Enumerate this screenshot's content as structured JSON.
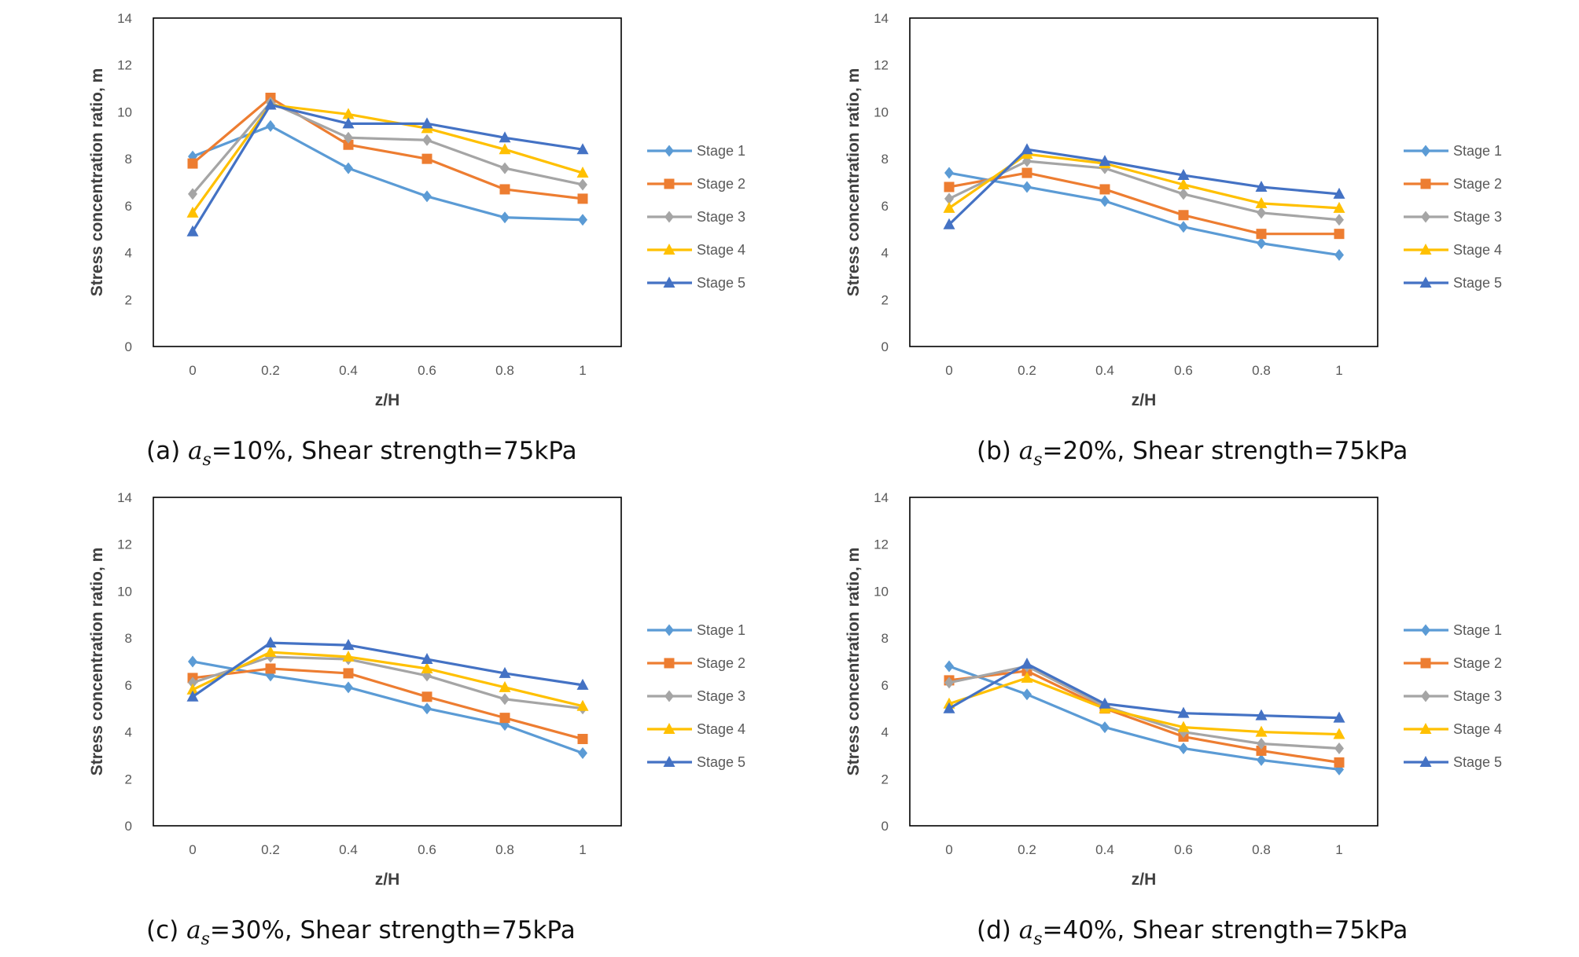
{
  "chart_data": [
    {
      "type": "line",
      "caption": {
        "prefix": "(a) ",
        "symbol": "a",
        "subscript": "s",
        "suffix": "=10%, Shear strength=75kPa"
      },
      "xlabel": "z/H",
      "ylabel": "Stress concentration ratio, m",
      "x": [
        0,
        0.2,
        0.4,
        0.6,
        0.8,
        1
      ],
      "xtick_labels": [
        "0",
        "0.2",
        "0.4",
        "0.6",
        "0.8",
        "1"
      ],
      "ylim": [
        0,
        14
      ],
      "ytick_labels": [
        "0",
        "2",
        "4",
        "6",
        "8",
        "10",
        "12",
        "14"
      ],
      "series": [
        {
          "name": "Stage 1",
          "values": [
            8.1,
            9.4,
            7.6,
            6.4,
            5.5,
            5.4
          ]
        },
        {
          "name": "Stage 2",
          "values": [
            7.8,
            10.6,
            8.6,
            8.0,
            6.7,
            6.3
          ]
        },
        {
          "name": "Stage 3",
          "values": [
            6.5,
            10.4,
            8.9,
            8.8,
            7.6,
            6.9
          ]
        },
        {
          "name": "Stage 4",
          "values": [
            5.7,
            10.3,
            9.9,
            9.3,
            8.4,
            7.4
          ]
        },
        {
          "name": "Stage 5",
          "values": [
            4.9,
            10.3,
            9.5,
            9.5,
            8.9,
            8.4
          ]
        }
      ]
    },
    {
      "type": "line",
      "caption": {
        "prefix": "(b) ",
        "symbol": "a",
        "subscript": "s",
        "suffix": "=20%, Shear strength=75kPa"
      },
      "xlabel": "z/H",
      "ylabel": "Stress concentration ratio, m",
      "x": [
        0,
        0.2,
        0.4,
        0.6,
        0.8,
        1
      ],
      "xtick_labels": [
        "0",
        "0.2",
        "0.4",
        "0.6",
        "0.8",
        "1"
      ],
      "ylim": [
        0,
        14
      ],
      "ytick_labels": [
        "0",
        "2",
        "4",
        "6",
        "8",
        "10",
        "12",
        "14"
      ],
      "series": [
        {
          "name": "Stage 1",
          "values": [
            7.4,
            6.8,
            6.2,
            5.1,
            4.4,
            3.9
          ]
        },
        {
          "name": "Stage 2",
          "values": [
            6.8,
            7.4,
            6.7,
            5.6,
            4.8,
            4.8
          ]
        },
        {
          "name": "Stage 3",
          "values": [
            6.3,
            7.9,
            7.6,
            6.5,
            5.7,
            5.4
          ]
        },
        {
          "name": "Stage 4",
          "values": [
            5.9,
            8.2,
            7.8,
            6.9,
            6.1,
            5.9
          ]
        },
        {
          "name": "Stage 5",
          "values": [
            5.2,
            8.4,
            7.9,
            7.3,
            6.8,
            6.5
          ]
        }
      ]
    },
    {
      "type": "line",
      "caption": {
        "prefix": "(c) ",
        "symbol": "a",
        "subscript": "s",
        "suffix": "=30%, Shear strength=75kPa"
      },
      "xlabel": "z/H",
      "ylabel": "Stress concentration ratio, m",
      "x": [
        0,
        0.2,
        0.4,
        0.6,
        0.8,
        1
      ],
      "xtick_labels": [
        "0",
        "0.2",
        "0.4",
        "0.6",
        "0.8",
        "1"
      ],
      "ylim": [
        0,
        14
      ],
      "ytick_labels": [
        "0",
        "2",
        "4",
        "6",
        "8",
        "10",
        "12",
        "14"
      ],
      "series": [
        {
          "name": "Stage 1",
          "values": [
            7.0,
            6.4,
            5.9,
            5.0,
            4.3,
            3.1
          ]
        },
        {
          "name": "Stage 2",
          "values": [
            6.3,
            6.7,
            6.5,
            5.5,
            4.6,
            3.7
          ]
        },
        {
          "name": "Stage 3",
          "values": [
            6.1,
            7.2,
            7.1,
            6.4,
            5.4,
            5.0
          ]
        },
        {
          "name": "Stage 4",
          "values": [
            5.8,
            7.4,
            7.2,
            6.7,
            5.9,
            5.1
          ]
        },
        {
          "name": "Stage 5",
          "values": [
            5.5,
            7.8,
            7.7,
            7.1,
            6.5,
            6.0
          ]
        }
      ]
    },
    {
      "type": "line",
      "caption": {
        "prefix": "(d) ",
        "symbol": "a",
        "subscript": "s",
        "suffix": "=40%, Shear strength=75kPa"
      },
      "xlabel": "z/H",
      "ylabel": "Stress concentration ratio, m",
      "x": [
        0,
        0.2,
        0.4,
        0.6,
        0.8,
        1
      ],
      "xtick_labels": [
        "0",
        "0.2",
        "0.4",
        "0.6",
        "0.8",
        "1"
      ],
      "ylim": [
        0,
        14
      ],
      "ytick_labels": [
        "0",
        "2",
        "4",
        "6",
        "8",
        "10",
        "12",
        "14"
      ],
      "series": [
        {
          "name": "Stage 1",
          "values": [
            6.8,
            5.6,
            4.2,
            3.3,
            2.8,
            2.4
          ]
        },
        {
          "name": "Stage 2",
          "values": [
            6.2,
            6.6,
            5.0,
            3.8,
            3.2,
            2.7
          ]
        },
        {
          "name": "Stage 3",
          "values": [
            6.1,
            6.8,
            5.1,
            4.0,
            3.5,
            3.3
          ]
        },
        {
          "name": "Stage 4",
          "values": [
            5.2,
            6.3,
            5.0,
            4.2,
            4.0,
            3.9
          ]
        },
        {
          "name": "Stage 5",
          "values": [
            5.0,
            6.9,
            5.2,
            4.8,
            4.7,
            4.6
          ]
        }
      ]
    }
  ],
  "series_colors": [
    "#5B9BD5",
    "#ED7D31",
    "#A5A5A5",
    "#FFC000",
    "#4472C4"
  ],
  "series_markers": [
    "diamond",
    "square",
    "diamond",
    "triangle",
    "triangle"
  ]
}
